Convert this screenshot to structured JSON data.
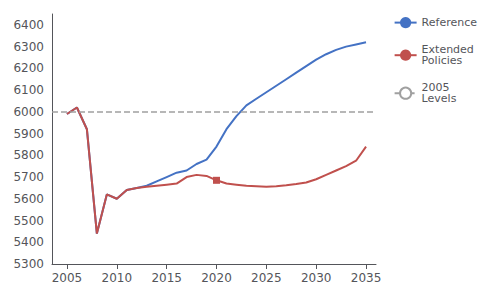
{
  "chart_data": {
    "type": "line",
    "x": [
      2005,
      2006,
      2007,
      2008,
      2009,
      2010,
      2011,
      2012,
      2013,
      2014,
      2015,
      2016,
      2017,
      2018,
      2019,
      2020,
      2021,
      2022,
      2023,
      2024,
      2025,
      2026,
      2027,
      2028,
      2029,
      2030,
      2031,
      2032,
      2033,
      2034,
      2035
    ],
    "series": [
      {
        "name": "Reference",
        "color": "#4472C4",
        "values": [
          5990,
          6020,
          5920,
          5440,
          5620,
          5600,
          5640,
          5650,
          5660,
          5680,
          5700,
          5720,
          5730,
          5760,
          5780,
          5840,
          5920,
          5980,
          6030,
          6060,
          6090,
          6120,
          6150,
          6180,
          6210,
          6240,
          6265,
          6285,
          6300,
          6310,
          6320
        ]
      },
      {
        "name": "Extended\nPolicies",
        "color": "#C0504D",
        "values": [
          5990,
          6020,
          5920,
          5440,
          5620,
          5600,
          5640,
          5650,
          5655,
          5660,
          5665,
          5670,
          5700,
          5710,
          5705,
          5685,
          5670,
          5665,
          5660,
          5658,
          5655,
          5658,
          5662,
          5668,
          5675,
          5690,
          5710,
          5730,
          5750,
          5775,
          5840
        ],
        "marker_point": {
          "x": 2020,
          "y": 5685,
          "marker": "square"
        }
      }
    ],
    "hline": {
      "name": "2005\nLevels",
      "value": 6000,
      "color": "#A0A0A0",
      "line_style": "dashed"
    },
    "xlim": [
      2003.5,
      2036
    ],
    "xticks": [
      2005,
      2010,
      2015,
      2020,
      2025,
      2030,
      2035
    ],
    "ylim": [
      5300,
      6450
    ],
    "yticks": [
      5300,
      5400,
      5500,
      5600,
      5700,
      5800,
      5900,
      6000,
      6100,
      6200,
      6300,
      6400
    ],
    "grid": false,
    "legend": "right"
  }
}
